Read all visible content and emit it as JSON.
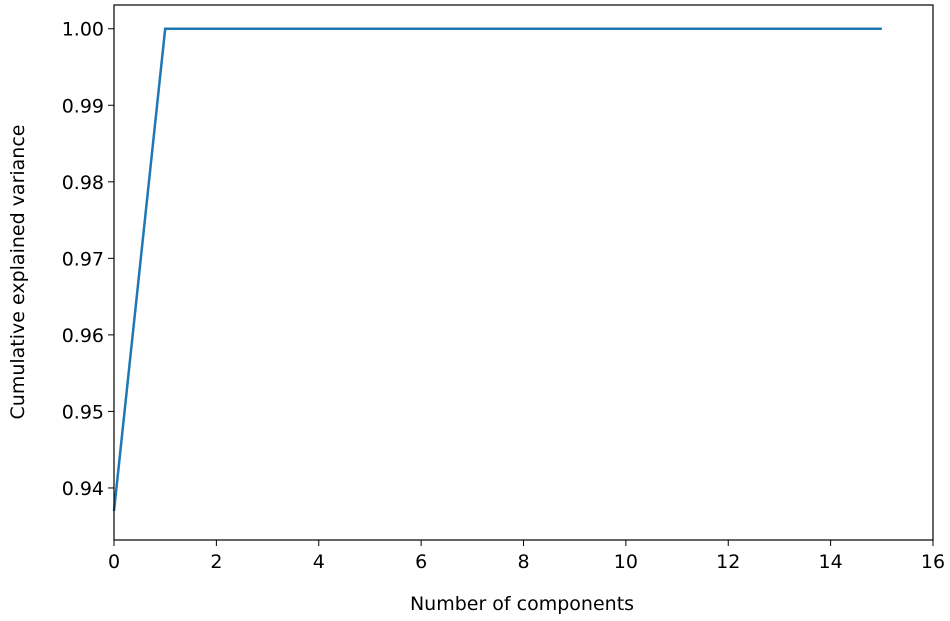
{
  "chart_data": {
    "type": "line",
    "x_label": "Number of components",
    "y_label": "Cumulative explained variance",
    "x": [
      0,
      1,
      2,
      3,
      4,
      5,
      6,
      7,
      8,
      9,
      10,
      11,
      12,
      13,
      14,
      15
    ],
    "series": [
      {
        "color": "#1f77b4",
        "values": [
          0.937,
          1,
          1,
          1,
          1,
          1,
          1,
          1,
          1,
          1,
          1,
          1,
          1,
          1,
          1,
          1
        ]
      }
    ],
    "xlim": [
      0,
      16
    ],
    "xticks": [
      0,
      2,
      4,
      6,
      8,
      10,
      12,
      14,
      16
    ],
    "ylim": [
      0.9332,
      1.0031
    ],
    "yticks": [
      0.94,
      0.95,
      0.96,
      0.97,
      0.98,
      0.99,
      {
        "value": 1,
        "label": "1.00"
      }
    ],
    "grid": false
  }
}
